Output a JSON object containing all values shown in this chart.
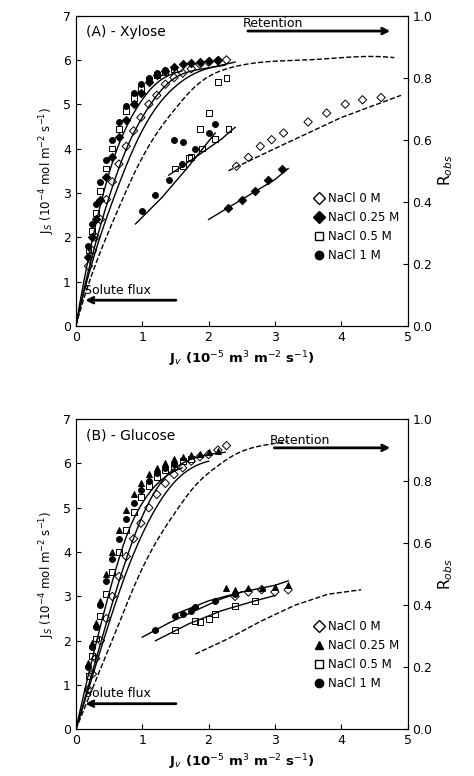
{
  "panel_A_title": "(A) - Xylose",
  "panel_B_title": "(B) - Glucose",
  "xlabel": "J$_v$ (10$^{-5}$ m$^3$ m$^{-2}$ s$^{-1}$)",
  "ylabel": "J$_S$ (10$^{-4}$ mol m$^{-2}$ s$^{-1}$)",
  "ylabel_right": "R$_{obs}$",
  "xlim": [
    0,
    5
  ],
  "ylim": [
    0,
    7
  ],
  "ylim_right": [
    0,
    1
  ],
  "xticks": [
    0,
    1,
    2,
    3,
    4,
    5
  ],
  "yticks": [
    0,
    1,
    2,
    3,
    4,
    5,
    6,
    7
  ],
  "yticks_right": [
    0,
    0.2,
    0.4,
    0.6,
    0.8,
    1.0
  ],
  "A_NaCl0_upper_x": [
    0.19,
    0.25,
    0.3,
    0.37,
    0.46,
    0.55,
    0.65,
    0.76,
    0.87,
    0.98,
    1.1,
    1.22,
    1.35,
    1.48,
    1.61,
    1.74,
    1.87,
    2.0,
    2.14,
    2.27
  ],
  "A_NaCl0_upper_y": [
    1.35,
    1.7,
    2.0,
    2.4,
    2.85,
    3.25,
    3.65,
    4.05,
    4.4,
    4.7,
    5.0,
    5.2,
    5.45,
    5.6,
    5.7,
    5.8,
    5.9,
    5.95,
    5.98,
    6.0
  ],
  "A_NaCl0_lower_x": [
    2.42,
    2.6,
    2.78,
    2.95,
    3.13,
    3.5,
    3.78,
    4.06,
    4.32,
    4.6
  ],
  "A_NaCl0_lower_y": [
    3.6,
    3.8,
    4.05,
    4.2,
    4.35,
    4.6,
    4.8,
    5.0,
    5.1,
    5.15
  ],
  "A_NaCl0_curve_x": [
    0.0,
    0.3,
    0.6,
    0.9,
    1.2,
    1.5,
    1.8,
    2.1,
    2.4,
    2.7,
    3.0,
    3.5,
    4.0,
    4.8
  ],
  "A_NaCl0_curve_y": [
    0.0,
    1.4,
    2.5,
    3.5,
    4.3,
    4.9,
    5.4,
    5.7,
    5.85,
    5.93,
    5.97,
    6.0,
    6.05,
    6.05
  ],
  "A_NaCl0_line_x": [
    2.3,
    3.0,
    4.0,
    4.9
  ],
  "A_NaCl0_line_y": [
    3.5,
    4.0,
    4.7,
    5.2
  ],
  "A_NaCl0_curve_style": "dashed",
  "A_NaCl0_line_style": "dashed",
  "A_NaCl025_upper_x": [
    0.19,
    0.25,
    0.3,
    0.37,
    0.46,
    0.55,
    0.65,
    0.76,
    0.87,
    0.98,
    1.1,
    1.22,
    1.35,
    1.48,
    1.61,
    1.74,
    1.87,
    2.0,
    2.14
  ],
  "A_NaCl025_upper_y": [
    1.55,
    2.0,
    2.4,
    2.85,
    3.35,
    3.8,
    4.25,
    4.65,
    5.0,
    5.25,
    5.5,
    5.65,
    5.75,
    5.85,
    5.9,
    5.93,
    5.95,
    5.97,
    5.99
  ],
  "A_NaCl025_lower_x": [
    2.3,
    2.5,
    2.7,
    2.9,
    3.1
  ],
  "A_NaCl025_lower_y": [
    2.65,
    2.85,
    3.05,
    3.3,
    3.55
  ],
  "A_NaCl025_curve_x": [
    0.0,
    0.3,
    0.6,
    0.9,
    1.2,
    1.5,
    1.8,
    2.1,
    2.4
  ],
  "A_NaCl025_curve_y": [
    0.0,
    1.7,
    3.0,
    4.1,
    4.9,
    5.4,
    5.7,
    5.85,
    5.95
  ],
  "A_NaCl025_line_x": [
    2.0,
    2.5,
    3.0,
    3.2
  ],
  "A_NaCl025_line_y": [
    2.4,
    2.85,
    3.3,
    3.55
  ],
  "A_NaCl025_curve_style": "solid",
  "A_NaCl025_line_style": "solid",
  "A_NaCl05_upper_x": [
    0.19,
    0.25,
    0.3,
    0.37,
    0.46,
    0.55,
    0.65,
    0.76,
    0.87,
    0.98,
    1.1,
    1.22,
    1.35,
    1.48,
    1.61,
    1.74,
    1.87,
    2.0,
    2.14,
    2.27
  ],
  "A_NaCl05_upper_y": [
    1.7,
    2.15,
    2.55,
    3.05,
    3.55,
    4.0,
    4.45,
    4.85,
    5.15,
    5.35,
    5.55,
    5.65,
    5.72,
    5.8,
    3.6,
    3.8,
    4.45,
    4.8,
    5.5,
    5.6
  ],
  "A_NaCl05_lower_x": [
    1.5,
    1.7,
    1.9,
    2.1,
    2.3
  ],
  "A_NaCl05_lower_y": [
    3.55,
    3.78,
    4.0,
    4.22,
    4.45
  ],
  "A_NaCl05_curve_x": [
    0.0,
    0.25,
    0.5,
    0.75,
    1.0,
    1.25,
    1.5,
    1.75,
    2.0,
    2.25
  ],
  "A_NaCl05_curve_y": [
    0.0,
    1.6,
    2.9,
    3.95,
    4.7,
    5.25,
    5.6,
    5.75,
    5.82,
    5.88
  ],
  "A_NaCl05_line_x": [
    1.4,
    1.8,
    2.2,
    2.4
  ],
  "A_NaCl05_line_y": [
    3.4,
    3.8,
    4.22,
    4.48
  ],
  "A_NaCl05_curve_style": "solid",
  "A_NaCl05_line_style": "solid",
  "A_NaCl1_upper_x": [
    0.19,
    0.25,
    0.3,
    0.37,
    0.46,
    0.55,
    0.65,
    0.76,
    0.87,
    0.98,
    1.1,
    1.22,
    1.35,
    1.48,
    1.61
  ],
  "A_NaCl1_upper_y": [
    1.8,
    2.3,
    2.75,
    3.25,
    3.75,
    4.2,
    4.6,
    4.95,
    5.25,
    5.45,
    5.6,
    5.7,
    5.78,
    4.2,
    4.15
  ],
  "A_NaCl1_lower_x": [
    1.0,
    1.2,
    1.4,
    1.6,
    1.8,
    2.0,
    2.1
  ],
  "A_NaCl1_lower_y": [
    2.6,
    2.95,
    3.3,
    3.65,
    4.0,
    4.35,
    4.55
  ],
  "A_NaCl1_curve_x": [
    0.0,
    0.2,
    0.4,
    0.6,
    0.8,
    1.0,
    1.2,
    1.4,
    1.6
  ],
  "A_NaCl1_curve_y": [
    0.0,
    1.6,
    2.9,
    3.9,
    4.6,
    5.1,
    5.45,
    5.65,
    5.75
  ],
  "A_NaCl1_line_x": [
    0.9,
    1.3,
    1.7,
    2.1
  ],
  "A_NaCl1_line_y": [
    2.3,
    2.9,
    3.6,
    4.35
  ],
  "A_NaCl1_curve_style": "solid",
  "A_NaCl1_line_style": "solid",
  "B_NaCl0_upper_x": [
    0.19,
    0.25,
    0.3,
    0.37,
    0.46,
    0.55,
    0.65,
    0.76,
    0.87,
    0.98,
    1.1,
    1.22,
    1.35,
    1.48,
    1.61,
    1.74,
    1.87,
    2.0,
    2.14,
    2.27
  ],
  "B_NaCl0_upper_y": [
    0.9,
    1.25,
    1.6,
    2.0,
    2.5,
    3.0,
    3.45,
    3.9,
    4.3,
    4.65,
    5.0,
    5.3,
    5.55,
    5.75,
    5.9,
    6.05,
    6.15,
    6.2,
    6.3,
    6.4
  ],
  "B_NaCl0_lower_x": [
    2.4,
    2.6,
    2.8,
    3.0,
    3.2
  ],
  "B_NaCl0_lower_y": [
    3.0,
    3.1,
    3.15,
    3.1,
    3.15
  ],
  "B_NaCl0_curve_x": [
    0.0,
    0.3,
    0.6,
    0.9,
    1.2,
    1.5,
    1.8,
    2.1,
    2.4,
    2.8,
    3.2
  ],
  "B_NaCl0_curve_y": [
    0.0,
    1.1,
    2.2,
    3.3,
    4.2,
    4.9,
    5.5,
    5.9,
    6.2,
    6.4,
    6.5
  ],
  "B_NaCl0_line_x": [
    1.8,
    2.3,
    2.8,
    3.3,
    3.8,
    4.3
  ],
  "B_NaCl0_line_y": [
    1.7,
    2.05,
    2.45,
    2.8,
    3.05,
    3.15
  ],
  "B_NaCl0_curve_style": "dashed",
  "B_NaCl0_line_style": "dashed",
  "B_NaCl025_upper_x": [
    0.19,
    0.25,
    0.3,
    0.37,
    0.46,
    0.55,
    0.65,
    0.76,
    0.87,
    0.98,
    1.1,
    1.22,
    1.35,
    1.48,
    1.61,
    1.74,
    1.87,
    2.0,
    2.14,
    2.27
  ],
  "B_NaCl025_upper_y": [
    1.5,
    1.95,
    2.4,
    2.9,
    3.5,
    4.0,
    4.5,
    4.95,
    5.3,
    5.55,
    5.75,
    5.9,
    6.0,
    6.1,
    6.15,
    6.2,
    6.22,
    6.25,
    6.28,
    3.18
  ],
  "B_NaCl025_lower_x": [
    2.4,
    2.6,
    2.8,
    3.0,
    3.2
  ],
  "B_NaCl025_lower_y": [
    3.15,
    3.18,
    3.2,
    3.22,
    3.25
  ],
  "B_NaCl025_curve_x": [
    0.0,
    0.25,
    0.5,
    0.75,
    1.0,
    1.25,
    1.5,
    1.75,
    2.0,
    2.25
  ],
  "B_NaCl025_curve_y": [
    0.0,
    1.3,
    2.6,
    3.8,
    4.8,
    5.5,
    5.9,
    6.1,
    6.2,
    6.25
  ],
  "B_NaCl025_line_x": [
    1.5,
    2.0,
    2.5,
    3.0,
    3.2
  ],
  "B_NaCl025_line_y": [
    2.6,
    2.9,
    3.1,
    3.25,
    3.35
  ],
  "B_NaCl025_curve_style": "solid",
  "B_NaCl025_line_style": "solid",
  "B_NaCl05_upper_x": [
    0.19,
    0.25,
    0.3,
    0.37,
    0.46,
    0.55,
    0.65,
    0.76,
    0.87,
    0.98,
    1.1,
    1.22,
    1.35,
    1.48,
    1.61,
    1.74,
    1.87,
    2.0
  ],
  "B_NaCl05_upper_y": [
    1.2,
    1.65,
    2.05,
    2.55,
    3.05,
    3.55,
    4.0,
    4.5,
    4.9,
    5.25,
    5.5,
    5.7,
    5.85,
    5.95,
    6.05,
    6.1,
    2.43,
    2.5
  ],
  "B_NaCl05_lower_x": [
    1.5,
    1.8,
    2.1,
    2.4,
    2.7
  ],
  "B_NaCl05_lower_y": [
    2.25,
    2.45,
    2.6,
    2.78,
    2.9
  ],
  "B_NaCl05_curve_x": [
    0.0,
    0.25,
    0.5,
    0.75,
    1.0,
    1.25,
    1.5,
    1.75,
    2.0
  ],
  "B_NaCl05_curve_y": [
    0.0,
    1.2,
    2.4,
    3.5,
    4.4,
    5.1,
    5.6,
    5.9,
    6.05
  ],
  "B_NaCl05_line_x": [
    1.2,
    1.7,
    2.2,
    2.7,
    3.0
  ],
  "B_NaCl05_line_y": [
    2.0,
    2.38,
    2.68,
    2.9,
    3.02
  ],
  "B_NaCl05_curve_style": "solid",
  "B_NaCl05_line_style": "solid",
  "B_NaCl1_upper_x": [
    0.19,
    0.25,
    0.3,
    0.37,
    0.46,
    0.55,
    0.65,
    0.76,
    0.87,
    0.98,
    1.1,
    1.22,
    1.35,
    1.48,
    1.61,
    1.74
  ],
  "B_NaCl1_upper_y": [
    1.4,
    1.85,
    2.3,
    2.8,
    3.35,
    3.85,
    4.3,
    4.75,
    5.1,
    5.4,
    5.6,
    5.78,
    5.9,
    5.98,
    2.6,
    2.68
  ],
  "B_NaCl1_lower_x": [
    1.2,
    1.5,
    1.8,
    2.1,
    2.4
  ],
  "B_NaCl1_lower_y": [
    2.25,
    2.55,
    2.75,
    2.9,
    3.05
  ],
  "B_NaCl1_curve_x": [
    0.0,
    0.2,
    0.4,
    0.6,
    0.8,
    1.0,
    1.2,
    1.4,
    1.6
  ],
  "B_NaCl1_curve_y": [
    0.0,
    1.3,
    2.5,
    3.6,
    4.5,
    5.1,
    5.5,
    5.75,
    5.9
  ],
  "B_NaCl1_line_x": [
    1.0,
    1.4,
    1.8,
    2.2,
    2.5
  ],
  "B_NaCl1_line_y": [
    2.08,
    2.4,
    2.68,
    2.95,
    3.1
  ],
  "B_NaCl1_curve_style": "solid",
  "B_NaCl1_line_style": "solid"
}
